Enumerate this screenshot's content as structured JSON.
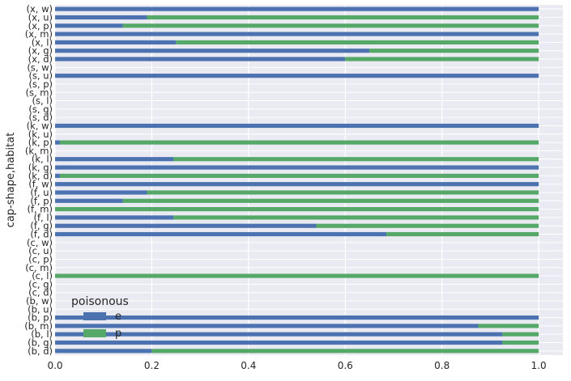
{
  "chart_data": {
    "type": "bar",
    "orientation": "horizontal",
    "stacked": true,
    "ylabel": "cap-shape,habitat",
    "xlabel": "",
    "xlim": [
      0,
      1.05
    ],
    "xticks": [
      "0.0",
      "0.2",
      "0.4",
      "0.6",
      "0.8",
      "1.0"
    ],
    "grid": true,
    "legend": {
      "title": "poisonous",
      "placement": "lower-left"
    },
    "categories": [
      "(b, d)",
      "(b, g)",
      "(b, l)",
      "(b, m)",
      "(b, p)",
      "(b, u)",
      "(b, w)",
      "(c, d)",
      "(c, g)",
      "(c, l)",
      "(c, m)",
      "(c, p)",
      "(c, u)",
      "(c, w)",
      "(f, d)",
      "(f, g)",
      "(f, l)",
      "(f, m)",
      "(f, p)",
      "(f, u)",
      "(f, w)",
      "(k, d)",
      "(k, g)",
      "(k, l)",
      "(k, m)",
      "(k, p)",
      "(k, u)",
      "(k, w)",
      "(s, d)",
      "(s, g)",
      "(s, l)",
      "(s, m)",
      "(s, p)",
      "(s, u)",
      "(s, w)",
      "(x, d)",
      "(x, g)",
      "(x, l)",
      "(x, m)",
      "(x, p)",
      "(x, u)",
      "(x, w)"
    ],
    "series": [
      {
        "name": "e",
        "color": "#4c72b0",
        "values": [
          0.2,
          0.925,
          0.925,
          0.875,
          1.0,
          0,
          0,
          0,
          0,
          0,
          0,
          0,
          0,
          0,
          0.685,
          0.54,
          0.245,
          0,
          0.14,
          0.19,
          1.0,
          0.01,
          1.0,
          0.245,
          0,
          0.01,
          0,
          1.0,
          0,
          0,
          0,
          0,
          0,
          1.0,
          0,
          0.6,
          0.65,
          0.25,
          1.0,
          0.14,
          0.19,
          1.0
        ]
      },
      {
        "name": "p",
        "color": "#55a868",
        "values": [
          0.8,
          0.075,
          0.075,
          0.125,
          0,
          0,
          0,
          0,
          0,
          1.0,
          0,
          0,
          0,
          0,
          0.315,
          0.46,
          0.755,
          1.0,
          0.86,
          0.81,
          0,
          0.99,
          0,
          0.755,
          0,
          0.99,
          0,
          0,
          0,
          0,
          0,
          0,
          0,
          0,
          0,
          0.4,
          0.35,
          0.75,
          0,
          0.86,
          0.81,
          0
        ]
      }
    ]
  }
}
